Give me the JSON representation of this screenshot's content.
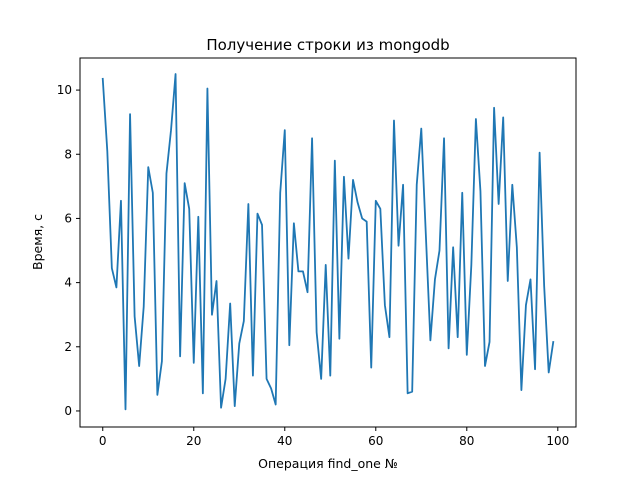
{
  "chart_data": {
    "type": "line",
    "title": "Получение строки из mongodb",
    "xlabel": "Операция find_one №",
    "ylabel": "Время, с",
    "xlim": [
      -5,
      104
    ],
    "ylim": [
      -0.5,
      11.0
    ],
    "xticks": [
      0,
      20,
      40,
      60,
      80,
      100
    ],
    "yticks": [
      0,
      2,
      4,
      6,
      8,
      10
    ],
    "xtick_labels": [
      "0",
      "20",
      "40",
      "60",
      "80",
      "100"
    ],
    "ytick_labels": [
      "0",
      "2",
      "4",
      "6",
      "8",
      "10"
    ],
    "grid": false,
    "series": [
      {
        "color": "#1f77b4",
        "x": [
          0,
          1,
          2,
          3,
          4,
          5,
          6,
          7,
          8,
          9,
          10,
          11,
          12,
          13,
          14,
          15,
          16,
          17,
          18,
          19,
          20,
          21,
          22,
          23,
          24,
          25,
          26,
          27,
          28,
          29,
          30,
          31,
          32,
          33,
          34,
          35,
          36,
          37,
          38,
          39,
          40,
          41,
          42,
          43,
          44,
          45,
          46,
          47,
          48,
          49,
          50,
          51,
          52,
          53,
          54,
          55,
          56,
          57,
          58,
          59,
          60,
          61,
          62,
          63,
          64,
          65,
          66,
          67,
          68,
          69,
          70,
          71,
          72,
          73,
          74,
          75,
          76,
          77,
          78,
          79,
          80,
          81,
          82,
          83,
          84,
          85,
          86,
          87,
          88,
          89,
          90,
          91,
          92,
          93,
          94,
          95,
          96,
          97,
          98,
          99
        ],
        "y": [
          10.35,
          8.1,
          4.45,
          3.85,
          6.55,
          0.05,
          9.25,
          2.95,
          1.4,
          3.25,
          7.6,
          6.8,
          0.5,
          1.55,
          7.4,
          8.75,
          10.5,
          1.7,
          7.1,
          6.3,
          1.5,
          6.05,
          0.55,
          10.05,
          3.0,
          4.05,
          0.1,
          1.0,
          3.35,
          0.15,
          2.1,
          2.8,
          6.45,
          1.1,
          6.15,
          5.8,
          1.0,
          0.7,
          0.2,
          6.8,
          8.75,
          2.05,
          5.85,
          4.35,
          4.35,
          3.7,
          8.5,
          2.45,
          1.0,
          4.55,
          1.1,
          7.8,
          2.25,
          7.3,
          4.75,
          7.2,
          6.5,
          6.0,
          5.9,
          1.35,
          6.55,
          6.3,
          3.3,
          2.3,
          9.05,
          5.15,
          7.05,
          0.55,
          0.6,
          7.05,
          8.8,
          5.5,
          2.2,
          4.1,
          5.0,
          8.5,
          1.95,
          5.1,
          2.3,
          6.8,
          1.75,
          4.55,
          9.1,
          6.85,
          1.4,
          2.15,
          9.45,
          6.45,
          9.15,
          4.05,
          7.05,
          5.1,
          0.65,
          3.3,
          4.1,
          1.3,
          8.05,
          3.9,
          1.2,
          2.15
        ]
      }
    ]
  }
}
